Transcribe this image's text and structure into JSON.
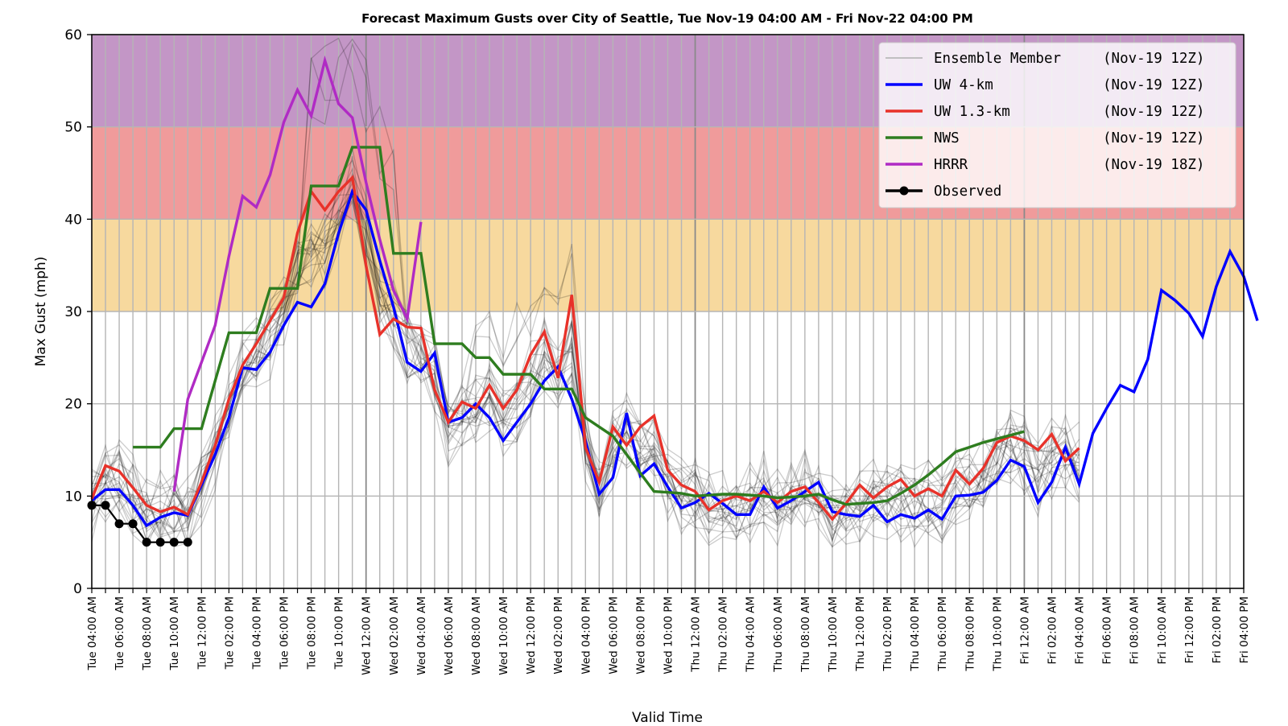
{
  "chart_data": {
    "type": "line",
    "title": "Forecast Maximum Gusts over City of Seattle, Tue Nov-19 04:00 AM - Fri Nov-22 04:00 PM",
    "xlabel": "Valid Time",
    "ylabel": "Max Gust (mph)",
    "ylim": [
      0,
      60
    ],
    "yticks": [
      0,
      10,
      20,
      30,
      40,
      50,
      60
    ],
    "x_hours_from_start": [
      0,
      84
    ],
    "x_step_hours": 1,
    "grid": true,
    "legend_position": "top-right",
    "threshold_bands": [
      {
        "from": 30,
        "to": 40,
        "color": "#f7d99e"
      },
      {
        "from": 40,
        "to": 50,
        "color": "#f09b9b"
      },
      {
        "from": 50,
        "to": 60,
        "color": "#c396c6"
      }
    ],
    "day_boundaries_hours": [
      20,
      44,
      68
    ],
    "xtick_labels": [
      "Tue 04:00 AM",
      "Tue 06:00 AM",
      "Tue 08:00 AM",
      "Tue 10:00 AM",
      "Tue 12:00 PM",
      "Tue 02:00 PM",
      "Tue 04:00 PM",
      "Tue 06:00 PM",
      "Tue 08:00 PM",
      "Tue 10:00 PM",
      "Wed 12:00 AM",
      "Wed 02:00 AM",
      "Wed 04:00 AM",
      "Wed 06:00 AM",
      "Wed 08:00 AM",
      "Wed 10:00 AM",
      "Wed 12:00 PM",
      "Wed 02:00 PM",
      "Wed 04:00 PM",
      "Wed 06:00 PM",
      "Wed 08:00 PM",
      "Wed 10:00 PM",
      "Thu 12:00 AM",
      "Thu 02:00 AM",
      "Thu 04:00 AM",
      "Thu 06:00 AM",
      "Thu 08:00 AM",
      "Thu 10:00 AM",
      "Thu 12:00 PM",
      "Thu 02:00 PM",
      "Thu 04:00 PM",
      "Thu 06:00 PM",
      "Thu 08:00 PM",
      "Thu 10:00 PM",
      "Fri 12:00 AM",
      "Fri 02:00 AM",
      "Fri 04:00 AM",
      "Fri 06:00 AM",
      "Fri 08:00 AM",
      "Fri 10:00 AM",
      "Fri 12:00 PM",
      "Fri 02:00 PM",
      "Fri 04:00 PM"
    ],
    "legend": [
      {
        "key": "ensemble",
        "label": "Ensemble Member",
        "run": "(Nov-19 12Z)",
        "color": "#b0b0b0"
      },
      {
        "key": "uw4",
        "label": "UW 4-km",
        "run": "(Nov-19 12Z)",
        "color": "#0000ff"
      },
      {
        "key": "uw13",
        "label": "UW 1.3-km",
        "run": "(Nov-19 12Z)",
        "color": "#e8322a"
      },
      {
        "key": "nws",
        "label": "NWS",
        "run": "(Nov-19 12Z)",
        "color": "#2e7d1f"
      },
      {
        "key": "hrrr",
        "label": "HRRR",
        "run": "(Nov-19 18Z)",
        "color": "#b02bc4"
      },
      {
        "key": "obs",
        "label": "Observed",
        "run": "",
        "color": "#000000"
      }
    ],
    "series": [
      {
        "name": "UW 4-km",
        "key": "uw4",
        "start_hour": 0,
        "values": [
          9.5,
          10.7,
          10.7,
          9,
          6.8,
          7.7,
          8.2,
          7.9,
          11.2,
          14.5,
          18.5,
          23.9,
          23.7,
          25.6,
          28.5,
          31,
          30.5,
          33,
          38.5,
          43,
          41,
          35.5,
          30.5,
          24.5,
          23.5,
          25.5,
          18,
          18.5,
          20,
          18.5,
          16,
          18,
          20,
          22.5,
          24,
          20.5,
          16,
          10.2,
          12,
          19,
          12.2,
          13.5,
          11,
          8.7,
          9.3,
          10.3,
          9.2,
          8,
          8,
          11,
          8.7,
          9.5,
          10.5,
          11.5,
          8.3,
          8,
          7.8,
          9,
          7.2,
          8,
          7.6,
          8.5,
          7.5,
          10,
          10.1,
          10.4,
          11.7,
          13.9,
          13.2,
          9.3,
          11.5,
          15.3,
          11.3,
          16.8,
          19.5,
          22,
          21.3,
          24.8,
          32.3,
          31.2,
          29.8,
          27.3,
          32.7,
          36.5,
          33.8,
          29
        ]
      },
      {
        "name": "UW 1.3-km",
        "key": "uw13",
        "start_hour": 0,
        "values": [
          9.7,
          13.3,
          12.7,
          10.9,
          9,
          8.3,
          8.8,
          8,
          11.5,
          15.5,
          20.5,
          24.2,
          26.5,
          29,
          31.5,
          38.5,
          43,
          41,
          43,
          44.5,
          35,
          27.5,
          29.2,
          28.3,
          28.2,
          21.5,
          18,
          20.2,
          19.5,
          22,
          19.5,
          21.5,
          25.3,
          27.8,
          22.8,
          31.8,
          15.3,
          11.5,
          17.5,
          15.5,
          17.5,
          18.7,
          12.8,
          11.2,
          10.5,
          8.5,
          9.5,
          10,
          9.5,
          10.5,
          9.3,
          10.5,
          11,
          9.3,
          7.5,
          9.2,
          11.2,
          9.8,
          11,
          11.8,
          10,
          10.8,
          10,
          12.8,
          11.3,
          13,
          15.8,
          16.5,
          16,
          15,
          16.7,
          13.8,
          15.2
        ]
      },
      {
        "name": "NWS",
        "key": "nws",
        "start_hour": 3,
        "values": [
          15.3,
          15.3,
          15.3,
          17.3,
          17.3,
          17.3,
          22.5,
          27.7,
          27.7,
          27.7,
          32.5,
          32.5,
          32.5,
          43.6,
          43.6,
          43.6,
          47.8,
          47.8,
          47.8,
          36.3,
          36.3,
          36.3,
          26.5,
          26.5,
          26.5,
          25,
          25,
          23.2,
          23.2,
          23.2,
          21.6,
          21.6,
          21.6,
          18.5,
          17.5,
          16.5,
          14.5,
          12.5,
          10.5,
          10.4,
          10.3,
          10,
          10.1,
          10.2,
          10.2,
          10.1,
          10,
          9.8,
          9.9,
          10,
          10.2,
          9.6,
          9.1,
          9.2,
          9.3,
          9.5,
          10.3,
          11.2,
          12.3,
          13.5,
          14.8,
          15.3,
          15.8,
          16.2,
          16.6,
          17
        ]
      },
      {
        "name": "HRRR",
        "key": "hrrr",
        "start_hour": 6,
        "values": [
          10.5,
          20.5,
          24.5,
          28.5,
          36,
          42.5,
          41.3,
          44.8,
          50.5,
          54,
          51.2,
          57.2,
          52.5,
          51,
          44,
          37.8,
          32.3,
          29.2,
          39.7
        ]
      },
      {
        "name": "Observed",
        "key": "obs",
        "start_hour": 0,
        "values": [
          9,
          9,
          7,
          7,
          5,
          5,
          5,
          5
        ]
      }
    ],
    "ensemble_note": "Multiple semi-transparent grey ensemble member traces clustered around the UW 4-km and UW 1.3-km forecasts through Fri 04:00 AM"
  }
}
